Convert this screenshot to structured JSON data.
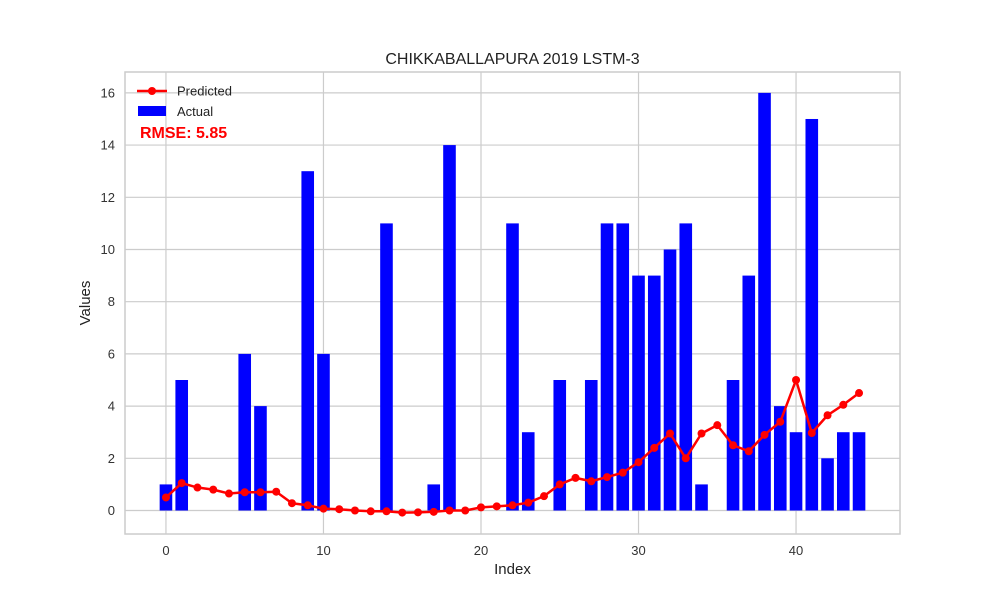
{
  "chart_data": {
    "type": "bar",
    "title": "CHIKKABALLAPURA 2019 LSTM-3",
    "xlabel": "Index",
    "ylabel": "Values",
    "xlim": [
      -2.6,
      46.6
    ],
    "ylim": [
      -0.9,
      16.8
    ],
    "xticks": [
      0,
      10,
      20,
      30,
      40
    ],
    "yticks": [
      0,
      2,
      4,
      6,
      8,
      10,
      12,
      14,
      16
    ],
    "grid": true,
    "legend_position": "top-left",
    "x": [
      0,
      1,
      2,
      3,
      4,
      5,
      6,
      7,
      8,
      9,
      10,
      11,
      12,
      13,
      14,
      15,
      16,
      17,
      18,
      19,
      20,
      21,
      22,
      23,
      24,
      25,
      26,
      27,
      28,
      29,
      30,
      31,
      32,
      33,
      34,
      35,
      36,
      37,
      38,
      39,
      40,
      41,
      42,
      43,
      44
    ],
    "series": [
      {
        "name": "Actual",
        "type": "bar",
        "color": "#0000ff",
        "values": [
          1,
          5,
          0,
          0,
          0,
          6,
          4,
          0,
          0,
          13,
          6,
          0,
          0,
          0,
          11,
          0,
          0,
          1,
          14,
          0,
          0,
          0,
          11,
          3,
          0,
          5,
          0,
          5,
          11,
          11,
          9,
          9,
          10,
          11,
          1,
          0,
          5,
          9,
          16,
          4,
          3,
          15,
          2,
          3,
          3
        ]
      },
      {
        "name": "Predicted",
        "type": "line",
        "color": "#ff0000",
        "values": [
          0.5,
          1.05,
          0.88,
          0.8,
          0.65,
          0.7,
          0.7,
          0.72,
          0.28,
          0.2,
          0.07,
          0.05,
          0.0,
          -0.03,
          -0.03,
          -0.08,
          -0.07,
          -0.05,
          0.0,
          0.0,
          0.12,
          0.16,
          0.2,
          0.3,
          0.55,
          1.0,
          1.25,
          1.12,
          1.28,
          1.45,
          1.85,
          2.4,
          2.95,
          2.0,
          2.95,
          3.27,
          2.5,
          2.27,
          2.9,
          3.4,
          5.0,
          2.97,
          3.65,
          4.05,
          4.5
        ]
      }
    ],
    "annotation": {
      "text": "RMSE: 5.85",
      "color": "#ff0000"
    }
  }
}
